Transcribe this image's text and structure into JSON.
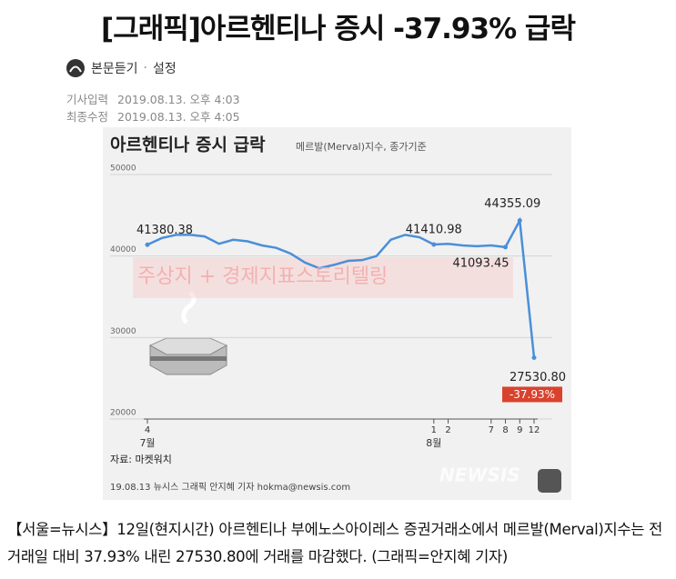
{
  "article": {
    "headline": "[그래픽]아르헨티나 증시 -37.93% 급락",
    "tts": "본문듣기",
    "settings": "설정",
    "published_label": "기사입력",
    "published": "2019.08.13. 오후 4:03",
    "modified_label": "최종수정",
    "modified": "2019.08.13. 오후 4:05",
    "body": "【서울=뉴시스】12일(현지시간) 아르헨티나 부에노스아이레스 증권거래소에서 메르발(Merval)지수는 전 거래일 대비 37.93% 내린 27530.80에 거래를 마감했다. (그래픽=안지혜 기자)"
  },
  "chart_data": {
    "type": "line",
    "title": "아르헨티나 증시 급락",
    "subtitle": "메르발(Merval)지수, 종가기준",
    "categories": [
      "4",
      null,
      null,
      null,
      null,
      null,
      null,
      null,
      null,
      null,
      null,
      null,
      null,
      null,
      null,
      null,
      null,
      null,
      null,
      null,
      "1",
      "2",
      null,
      null,
      "7",
      "8",
      "9",
      "12"
    ],
    "months": [
      {
        "index": 0,
        "label": "7월"
      },
      {
        "index": 20,
        "label": "8월"
      }
    ],
    "series": [
      {
        "color": "#4a8fd8",
        "values": [
          41380.38,
          42200,
          42600,
          42600,
          42400,
          41500,
          42000,
          41800,
          41300,
          41000,
          40300,
          39200,
          38500,
          38900,
          39400,
          39500,
          40000,
          42000,
          42600,
          42300,
          41410.98,
          41500,
          41300,
          41200,
          41300,
          41093.45,
          44355.09,
          27530.8
        ],
        "value_labels": [
          "41380.38",
          null,
          null,
          null,
          null,
          null,
          null,
          null,
          null,
          null,
          null,
          null,
          null,
          null,
          null,
          null,
          null,
          null,
          null,
          null,
          "41410.98",
          null,
          null,
          null,
          null,
          "41093.45",
          "44355.09",
          "27530.80"
        ]
      }
    ],
    "change_label": "-37.93%",
    "ylim": [
      20000,
      50000
    ],
    "yticks": [
      20000,
      30000,
      40000,
      50000
    ],
    "grid": true,
    "watermark": "주상지 + 경제지표스토리텔링",
    "source": "자료: 마켓워치",
    "credit": "19.08.13 뉴시스 그래픽 안지혜 기자 hokma@newsis.com",
    "logo": "NEWSIS"
  }
}
